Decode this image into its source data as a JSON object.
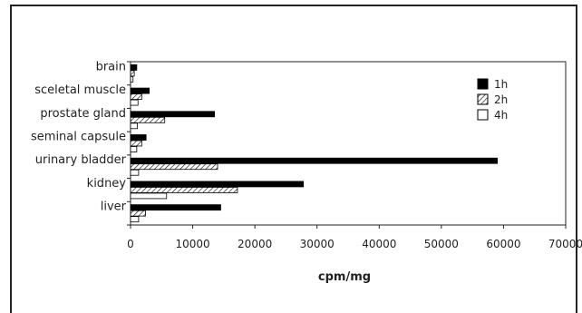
{
  "chart_data": {
    "type": "bar",
    "orientation": "horizontal",
    "categories": [
      "brain",
      "sceletal muscle",
      "prostate gland",
      "seminal capsule",
      "urinary bladder",
      "kidney",
      "liver"
    ],
    "series": [
      {
        "name": "1h",
        "values": [
          1000,
          3000,
          13500,
          2500,
          59000,
          27800,
          14500
        ]
      },
      {
        "name": "2h",
        "values": [
          600,
          1800,
          5500,
          1800,
          14000,
          17200,
          2400
        ]
      },
      {
        "name": "4h",
        "values": [
          400,
          1200,
          1100,
          1000,
          1300,
          5800,
          1300
        ]
      }
    ],
    "xlabel": "cpm/mg",
    "ylabel": "",
    "title": "",
    "xlim": [
      0,
      70000
    ],
    "xticks": [
      0,
      10000,
      20000,
      30000,
      40000,
      50000,
      60000,
      70000
    ],
    "grid": false,
    "legend_position": "right",
    "colors": {
      "1h": "#000000",
      "2h": "hatched",
      "4h": "#ffffff"
    }
  }
}
